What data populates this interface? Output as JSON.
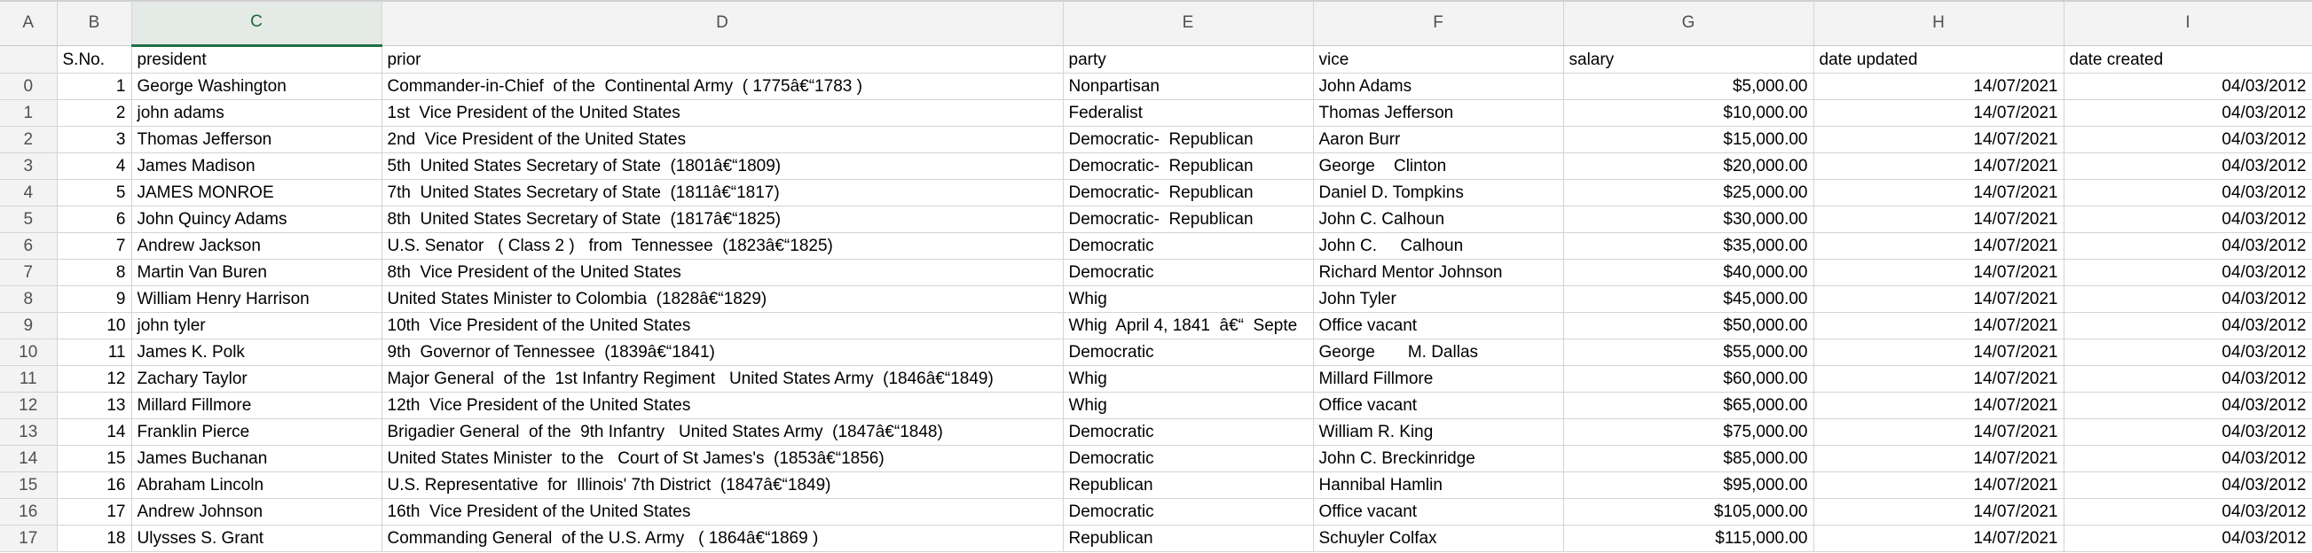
{
  "sheet": {
    "column_letters": [
      "A",
      "B",
      "C",
      "D",
      "E",
      "F",
      "G",
      "H",
      "I"
    ],
    "active_column": "C",
    "headers": {
      "index": "",
      "sno": "S.No.",
      "president": "president",
      "prior": "prior",
      "party": "party",
      "vice": "vice",
      "salary": "salary",
      "date_updated": "date updated",
      "date_created": "date created"
    },
    "rows": [
      {
        "index": "0",
        "sno": "1",
        "president": "George Washington",
        "prior": "Commander-in-Chief  of the  Continental Army  ( 1775â€“1783 )",
        "party": "Nonpartisan",
        "vice": "John Adams",
        "salary": "$5,000.00",
        "date_updated": "14/07/2021",
        "date_created": "04/03/2012"
      },
      {
        "index": "1",
        "sno": "2",
        "president": "john adams",
        "prior": "1st  Vice President of the United States",
        "party": "Federalist",
        "vice": "Thomas Jefferson",
        "salary": "$10,000.00",
        "date_updated": "14/07/2021",
        "date_created": "04/03/2012"
      },
      {
        "index": "2",
        "sno": "3",
        "president": "Thomas Jefferson",
        "prior": "2nd  Vice President of the United States",
        "party": "Democratic-  Republican",
        "vice": "Aaron Burr",
        "salary": "$15,000.00",
        "date_updated": "14/07/2021",
        "date_created": "04/03/2012"
      },
      {
        "index": "3",
        "sno": "4",
        "president": "James Madison",
        "prior": "5th  United States Secretary of State  (1801â€“1809)",
        "party": "Democratic-  Republican",
        "vice": "George    Clinton",
        "salary": "$20,000.00",
        "date_updated": "14/07/2021",
        "date_created": "04/03/2012"
      },
      {
        "index": "4",
        "sno": "5",
        "president": "JAMES MONROE",
        "prior": "7th  United States Secretary of State  (1811â€“1817)",
        "party": "Democratic-  Republican",
        "vice": "Daniel D. Tompkins",
        "salary": "$25,000.00",
        "date_updated": "14/07/2021",
        "date_created": "04/03/2012"
      },
      {
        "index": "5",
        "sno": "6",
        "president": "John Quincy Adams",
        "prior": "8th  United States Secretary of State  (1817â€“1825)",
        "party": "Democratic-  Republican",
        "vice": "John C. Calhoun",
        "salary": "$30,000.00",
        "date_updated": "14/07/2021",
        "date_created": "04/03/2012"
      },
      {
        "index": "6",
        "sno": "7",
        "president": "Andrew Jackson",
        "prior": "U.S. Senator   ( Class 2 )   from  Tennessee  (1823â€“1825)",
        "party": "Democratic",
        "vice": "John C.     Calhoun",
        "salary": "$35,000.00",
        "date_updated": "14/07/2021",
        "date_created": "04/03/2012"
      },
      {
        "index": "7",
        "sno": "8",
        "president": "Martin Van Buren",
        "prior": "8th  Vice President of the United States",
        "party": "Democratic",
        "vice": "Richard Mentor Johnson",
        "salary": "$40,000.00",
        "date_updated": "14/07/2021",
        "date_created": "04/03/2012"
      },
      {
        "index": "8",
        "sno": "9",
        "president": "William Henry Harrison",
        "prior": "United States Minister to Colombia  (1828â€“1829)",
        "party": "Whig",
        "vice": "John Tyler",
        "salary": "$45,000.00",
        "date_updated": "14/07/2021",
        "date_created": "04/03/2012"
      },
      {
        "index": "9",
        "sno": "10",
        "president": "john tyler",
        "prior": "10th  Vice President of the United States",
        "party": "Whig  April 4, 1841  â€“  Septe",
        "vice": "Office vacant",
        "salary": "$50,000.00",
        "date_updated": "14/07/2021",
        "date_created": "04/03/2012"
      },
      {
        "index": "10",
        "sno": "11",
        "president": "James K. Polk",
        "prior": "9th  Governor of Tennessee  (1839â€“1841)",
        "party": "Democratic",
        "vice": "George       M. Dallas",
        "salary": "$55,000.00",
        "date_updated": "14/07/2021",
        "date_created": "04/03/2012"
      },
      {
        "index": "11",
        "sno": "12",
        "president": "Zachary Taylor",
        "prior": "Major General  of the  1st Infantry Regiment   United States Army  (1846â€“1849)",
        "party": "Whig",
        "vice": "Millard Fillmore",
        "salary": "$60,000.00",
        "date_updated": "14/07/2021",
        "date_created": "04/03/2012"
      },
      {
        "index": "12",
        "sno": "13",
        "president": "Millard Fillmore",
        "prior": "12th  Vice President of the United States",
        "party": "Whig",
        "vice": "Office vacant",
        "salary": "$65,000.00",
        "date_updated": "14/07/2021",
        "date_created": "04/03/2012"
      },
      {
        "index": "13",
        "sno": "14",
        "president": "Franklin Pierce",
        "prior": "Brigadier General  of the  9th Infantry   United States Army  (1847â€“1848)",
        "party": "Democratic",
        "vice": "William R. King",
        "salary": "$75,000.00",
        "date_updated": "14/07/2021",
        "date_created": "04/03/2012"
      },
      {
        "index": "14",
        "sno": "15",
        "president": "James Buchanan",
        "prior": "United States Minister  to the   Court of St James's  (1853â€“1856)",
        "party": "Democratic",
        "vice": "John C. Breckinridge",
        "salary": "$85,000.00",
        "date_updated": "14/07/2021",
        "date_created": "04/03/2012"
      },
      {
        "index": "15",
        "sno": "16",
        "president": "Abraham Lincoln",
        "prior": "U.S. Representative  for  Illinois' 7th District  (1847â€“1849)",
        "party": "Republican",
        "vice": "Hannibal Hamlin",
        "salary": "$95,000.00",
        "date_updated": "14/07/2021",
        "date_created": "04/03/2012"
      },
      {
        "index": "16",
        "sno": "17",
        "president": "Andrew Johnson",
        "prior": "16th  Vice President of the United States",
        "party": "Democratic",
        "vice": "Office vacant",
        "salary": "$105,000.00",
        "date_updated": "14/07/2021",
        "date_created": "04/03/2012"
      },
      {
        "index": "17",
        "sno": "18",
        "president": "Ulysses S. Grant",
        "prior": "Commanding General  of the U.S. Army   ( 1864â€“1869 )",
        "party": "Republican",
        "vice": "Schuyler Colfax",
        "salary": "$115,000.00",
        "date_updated": "14/07/2021",
        "date_created": "04/03/2012"
      }
    ]
  },
  "colors": {
    "header_bg": "#f3f3f3",
    "active_header_bg": "#e4ebe6",
    "active_header_accent": "#1e7145",
    "grid_line": "#d4d4d4"
  }
}
